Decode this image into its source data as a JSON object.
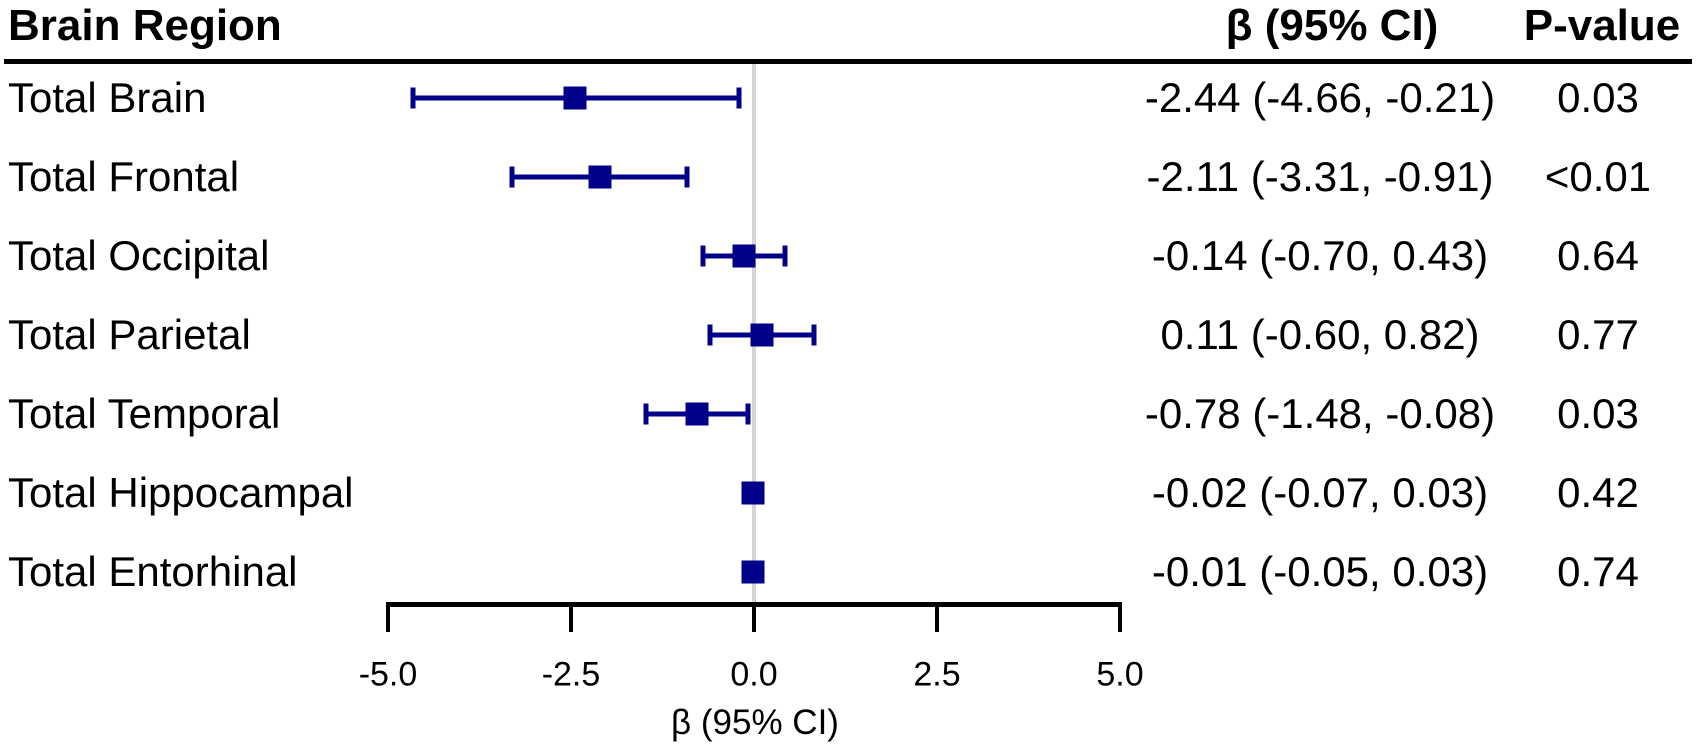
{
  "header": {
    "region": "Brain Region",
    "beta_ci": "β (95% CI)",
    "p": "P-value"
  },
  "chart_data": {
    "type": "forest",
    "xlabel": "β (95% CI)",
    "xlim": [
      -5.0,
      5.0
    ],
    "x_ticks": [
      "-5.0",
      "-2.5",
      "0.0",
      "2.5",
      "5.0"
    ],
    "x_tick_values": [
      -5.0,
      -2.5,
      0.0,
      2.5,
      5.0
    ],
    "reference_line": 0,
    "marker_color": "#00008B",
    "reference_line_color": "#D4D4D4",
    "axis_color": "#000000",
    "rows": [
      {
        "label": "Total Brain",
        "beta": -2.44,
        "lower": -4.66,
        "upper": -0.21,
        "beta_ci": "-2.44 (-4.66, -0.21)",
        "p": "0.03"
      },
      {
        "label": "Total Frontal",
        "beta": -2.11,
        "lower": -3.31,
        "upper": -0.91,
        "beta_ci": "-2.11 (-3.31, -0.91)",
        "p": "<0.01"
      },
      {
        "label": "Total Occipital",
        "beta": -0.14,
        "lower": -0.7,
        "upper": 0.43,
        "beta_ci": "-0.14 (-0.70, 0.43)",
        "p": "0.64"
      },
      {
        "label": "Total Parietal",
        "beta": 0.11,
        "lower": -0.6,
        "upper": 0.82,
        "beta_ci": "0.11 (-0.60, 0.82)",
        "p": "0.77"
      },
      {
        "label": "Total Temporal",
        "beta": -0.78,
        "lower": -1.48,
        "upper": -0.08,
        "beta_ci": "-0.78 (-1.48, -0.08)",
        "p": "0.03"
      },
      {
        "label": "Total Hippocampal",
        "beta": -0.02,
        "lower": -0.07,
        "upper": 0.03,
        "beta_ci": "-0.02 (-0.07, 0.03)",
        "p": "0.42"
      },
      {
        "label": "Total Entorhinal",
        "beta": -0.01,
        "lower": -0.05,
        "upper": 0.03,
        "beta_ci": "-0.01 (-0.05, 0.03)",
        "p": "0.74"
      }
    ]
  }
}
